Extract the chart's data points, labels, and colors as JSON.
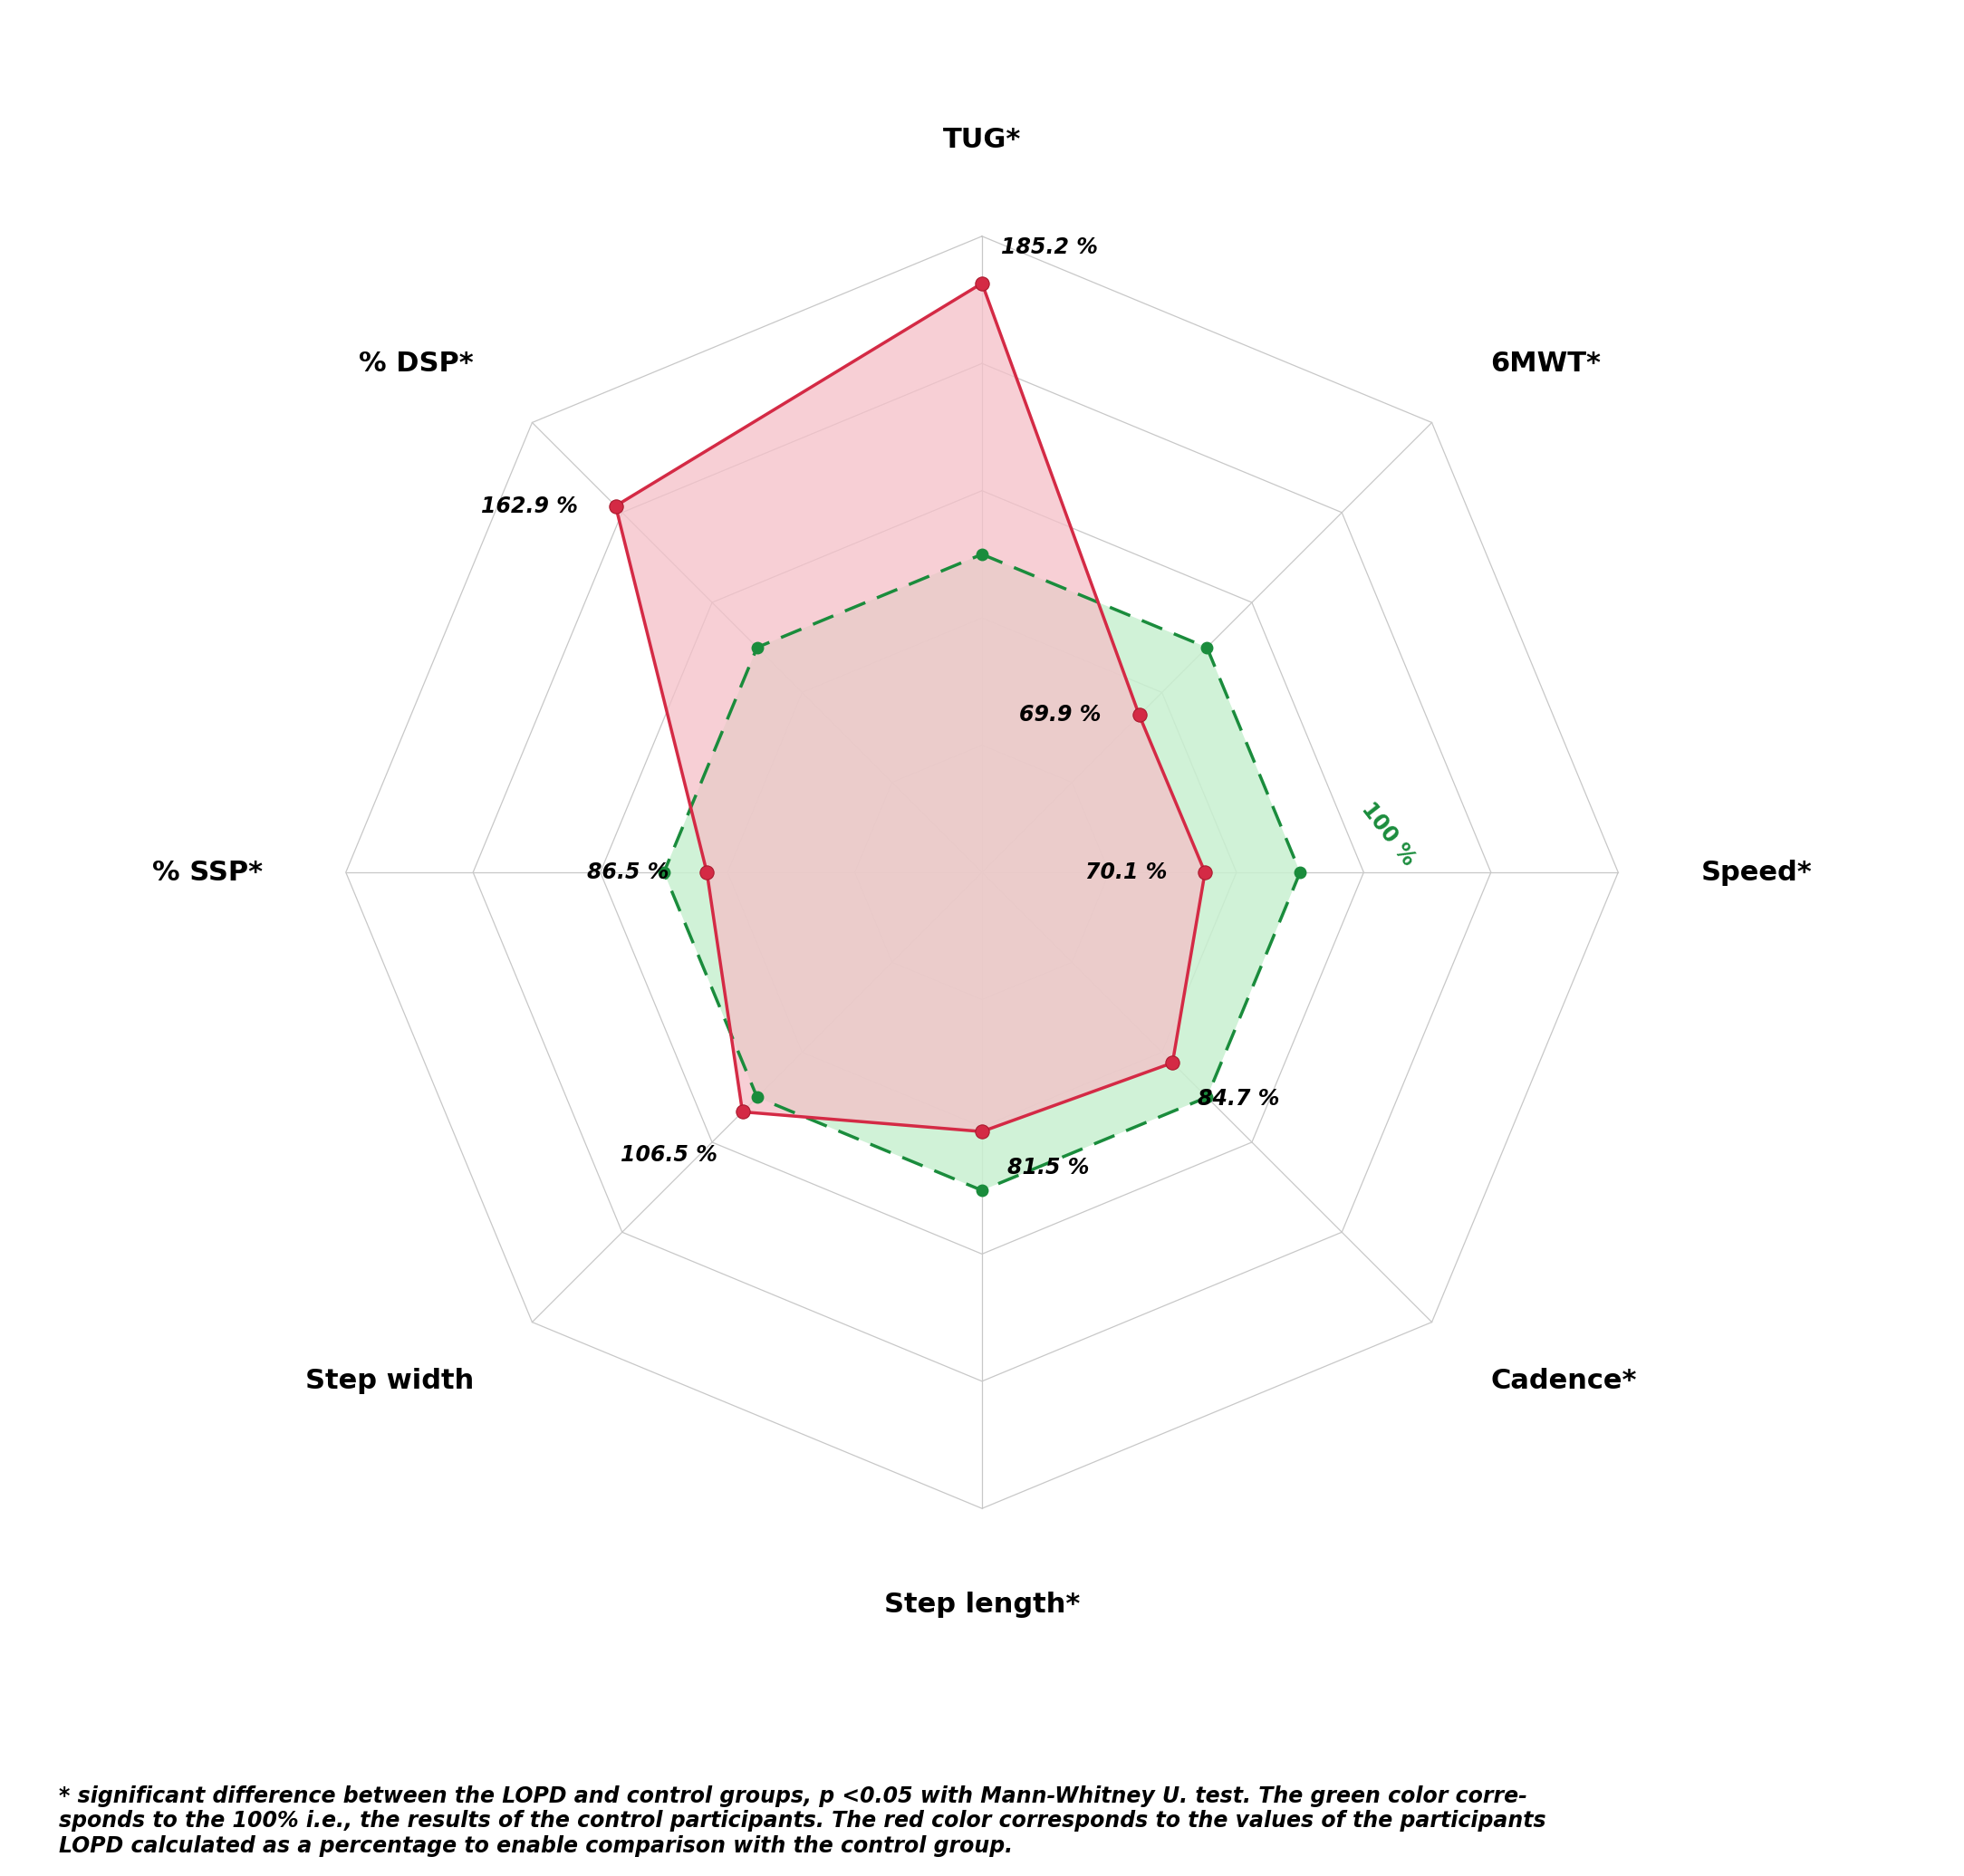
{
  "categories": [
    "TUG*",
    "6MWT*",
    "Speed*",
    "Cadence*",
    "Step length*",
    "Step width",
    "% SSP*",
    "% DSP*"
  ],
  "lopd_values": [
    185.2,
    69.9,
    70.1,
    84.7,
    81.5,
    106.5,
    86.5,
    162.9
  ],
  "control_values": [
    100,
    100,
    100,
    100,
    100,
    100,
    100,
    100
  ],
  "lopd_labels": [
    "185.2 %",
    "69.9 %",
    "70.1 %",
    "84.7 %",
    "81.5 %",
    "106.5 %",
    "86.5 %",
    "162.9 %"
  ],
  "lopd_color": "#d42a45",
  "lopd_fill": "#f5c0c8",
  "control_color": "#1a8c3c",
  "control_fill": "#c8f0d0",
  "grid_color": "#c8c8c8",
  "spider_max": 200,
  "grid_levels": [
    40,
    80,
    120,
    160,
    200
  ],
  "control_label": "100 %",
  "footnote_line1": "* significant difference between the LOPD and control groups, p <0.05 with Mann-Whitney U. test. The green color corre-",
  "footnote_line2": "sponds to the 100% i.e., the results of the control participants. The red color corresponds to the values of the participants",
  "footnote_line3": "LOPD calculated as a percentage to enable comparison with the control group.",
  "cat_fontsize": 22,
  "val_fontsize": 17,
  "footnote_fontsize": 17
}
